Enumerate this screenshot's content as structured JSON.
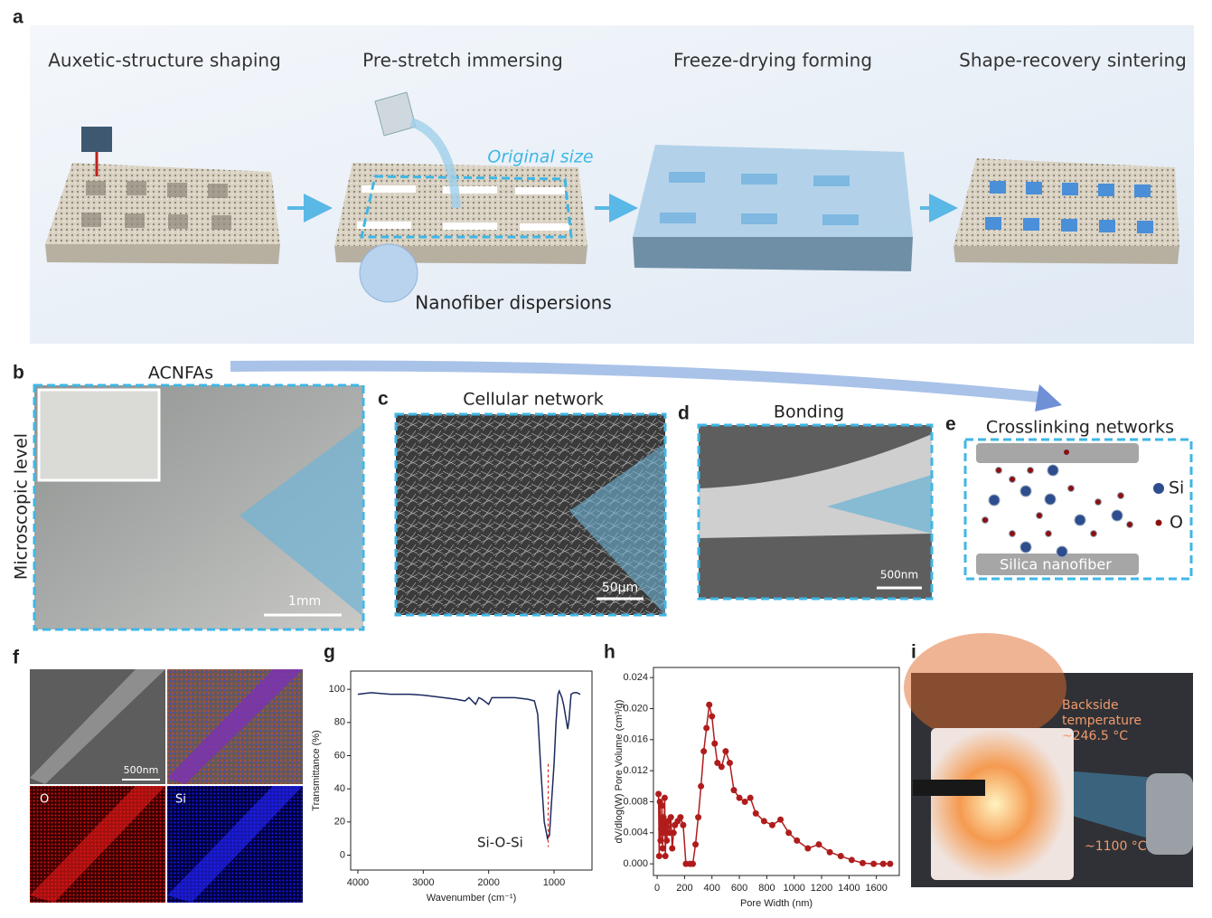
{
  "panel_a": {
    "label": "a",
    "steps": [
      "Auxetic-structure shaping",
      "Pre-stretch immersing",
      "Freeze-drying forming",
      "Shape-recovery sintering"
    ],
    "original_size": "Original size",
    "dispersion": "Nanofiber dispersions"
  },
  "panel_b": {
    "label": "b",
    "title": "ACNFAs",
    "side_label": "Microscopic level",
    "scale": "1mm"
  },
  "panel_c": {
    "label": "c",
    "title": "Cellular network",
    "scale": "50μm"
  },
  "panel_d": {
    "label": "d",
    "title": "Bonding",
    "scale": "500nm"
  },
  "panel_e": {
    "label": "e",
    "title": "Crosslinking networks",
    "legend": [
      "Si",
      "O"
    ],
    "substrate": "Silica nanofiber"
  },
  "panel_f": {
    "label": "f",
    "scale": "500nm",
    "maps": [
      "O",
      "Si"
    ]
  },
  "panel_i": {
    "label": "i",
    "annotation_lines": [
      "Backside",
      "temperature",
      "~246.5 °C"
    ],
    "flame_temp": "~1100 °C"
  },
  "chart_data": [
    {
      "type": "line",
      "label": "g",
      "x_label": "Wavenumber (cm⁻¹)",
      "y_label": "Transmittance (%)",
      "annotation": "Si-O-Si",
      "reference_x": 1090,
      "color": "#1b2a5e",
      "x": [
        4000,
        3800,
        3500,
        3200,
        3000,
        2800,
        2500,
        2360,
        2300,
        2200,
        2150,
        2100,
        2000,
        1950,
        1900,
        1800,
        1600,
        1400,
        1300,
        1250,
        1200,
        1150,
        1100,
        1070,
        1050,
        1000,
        970,
        940,
        920,
        880,
        850,
        800,
        790,
        770,
        740,
        700,
        650,
        600
      ],
      "values": [
        97,
        98,
        97,
        97,
        96.5,
        95.5,
        94,
        93,
        95,
        91,
        95,
        94,
        91,
        95,
        95,
        95,
        95,
        94,
        93,
        85,
        50,
        20,
        10,
        12,
        25,
        55,
        80,
        97,
        99,
        95,
        90,
        78,
        76,
        82,
        97,
        98,
        98,
        97
      ],
      "xlim": [
        4110,
        420
      ],
      "ylim": [
        -9,
        111
      ],
      "xticks": [
        4000,
        3000,
        2000,
        1000
      ],
      "yticks": [
        0,
        20,
        40,
        60,
        80,
        100
      ]
    },
    {
      "type": "line",
      "markers": true,
      "label": "h",
      "x_label": "Pore Width (nm)",
      "y_label": "dV/dlog(W) Pore Volume (cm³/g)",
      "color": "#b01c1c",
      "x": [
        10,
        15,
        20,
        25,
        30,
        35,
        40,
        45,
        50,
        55,
        60,
        65,
        70,
        80,
        90,
        100,
        110,
        120,
        130,
        150,
        170,
        190,
        210,
        240,
        260,
        280,
        300,
        320,
        340,
        360,
        380,
        400,
        420,
        440,
        470,
        500,
        530,
        560,
        600,
        640,
        680,
        720,
        780,
        840,
        900,
        960,
        1020,
        1100,
        1180,
        1260,
        1340,
        1420,
        1500,
        1580,
        1650,
        1700
      ],
      "values": [
        0.009,
        0.001,
        0.008,
        0.003,
        0.0045,
        0.0075,
        0.002,
        0.006,
        0.004,
        0.0085,
        0.001,
        0.005,
        0.003,
        0.0055,
        0.004,
        0.006,
        0.002,
        0.004,
        0.005,
        0.0055,
        0.006,
        0.005,
        0,
        0,
        0,
        0.0025,
        0.006,
        0.01,
        0.0145,
        0.0175,
        0.0205,
        0.019,
        0.0155,
        0.013,
        0.0125,
        0.0145,
        0.013,
        0.0095,
        0.0085,
        0.008,
        0.0085,
        0.0065,
        0.0055,
        0.005,
        0.0057,
        0.004,
        0.003,
        0.002,
        0.0025,
        0.0015,
        0.001,
        0.0005,
        0.0001,
        0,
        0,
        0
      ],
      "xlim": [
        -27,
        1767
      ],
      "ylim": [
        -0.0015,
        0.0253
      ],
      "xticks": [
        0,
        200,
        400,
        600,
        800,
        1000,
        1200,
        1400,
        1600
      ],
      "yticks": [
        {
          "value": 0,
          "label": "0.000"
        },
        {
          "value": 0.004,
          "label": "0.004"
        },
        {
          "value": 0.008,
          "label": "0.008"
        },
        {
          "value": 0.012,
          "label": "0.012"
        },
        {
          "value": 0.016,
          "label": "0.016"
        },
        {
          "value": 0.02,
          "label": "0.020"
        },
        {
          "value": 0.024,
          "label": "0.024"
        }
      ]
    }
  ]
}
